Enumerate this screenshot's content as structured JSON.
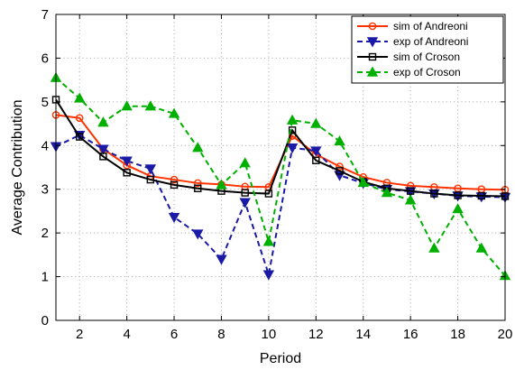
{
  "chart_data": {
    "type": "line",
    "xlabel": "Period",
    "ylabel": "Average Contribution",
    "xlim": [
      1,
      20
    ],
    "ylim": [
      0,
      7
    ],
    "xticks": [
      2,
      4,
      6,
      8,
      10,
      12,
      14,
      16,
      18,
      20
    ],
    "yticks": [
      0,
      1,
      2,
      3,
      4,
      5,
      6,
      7
    ],
    "grid": true,
    "legend_position": "top-right",
    "x": [
      1,
      2,
      3,
      4,
      5,
      6,
      7,
      8,
      9,
      10,
      11,
      12,
      13,
      14,
      15,
      16,
      17,
      18,
      19,
      20
    ],
    "series": [
      {
        "name": "sim of Andreoni",
        "color": "#ff3300",
        "line": "solid",
        "marker": "circle",
        "values": [
          4.7,
          4.63,
          3.92,
          3.55,
          3.3,
          3.22,
          3.14,
          3.11,
          3.06,
          3.05,
          4.22,
          3.8,
          3.52,
          3.28,
          3.15,
          3.08,
          3.05,
          3.02,
          3.0,
          2.99
        ]
      },
      {
        "name": "exp of Andreoni",
        "color": "#1a1aa6",
        "line": "dashed",
        "marker": "triangle-down",
        "values": [
          3.98,
          4.24,
          3.92,
          3.65,
          3.47,
          2.36,
          1.98,
          1.4,
          2.7,
          1.05,
          3.95,
          3.88,
          3.32,
          3.14,
          3.0,
          2.95,
          2.9,
          2.85,
          2.83,
          2.82
        ]
      },
      {
        "name": "sim of Croson",
        "color": "#000000",
        "line": "solid",
        "marker": "square",
        "values": [
          5.05,
          4.2,
          3.75,
          3.38,
          3.22,
          3.1,
          3.02,
          2.96,
          2.92,
          2.9,
          4.35,
          3.66,
          3.42,
          3.17,
          3.02,
          2.96,
          2.9,
          2.86,
          2.85,
          2.84
        ]
      },
      {
        "name": "exp of Croson",
        "color": "#00b000",
        "line": "dashed",
        "marker": "triangle-up",
        "values": [
          5.55,
          5.08,
          4.53,
          4.9,
          4.9,
          4.73,
          3.95,
          3.1,
          3.6,
          1.8,
          4.58,
          4.5,
          4.1,
          3.15,
          2.92,
          2.75,
          1.65,
          2.55,
          1.65,
          1.02
        ]
      }
    ]
  }
}
